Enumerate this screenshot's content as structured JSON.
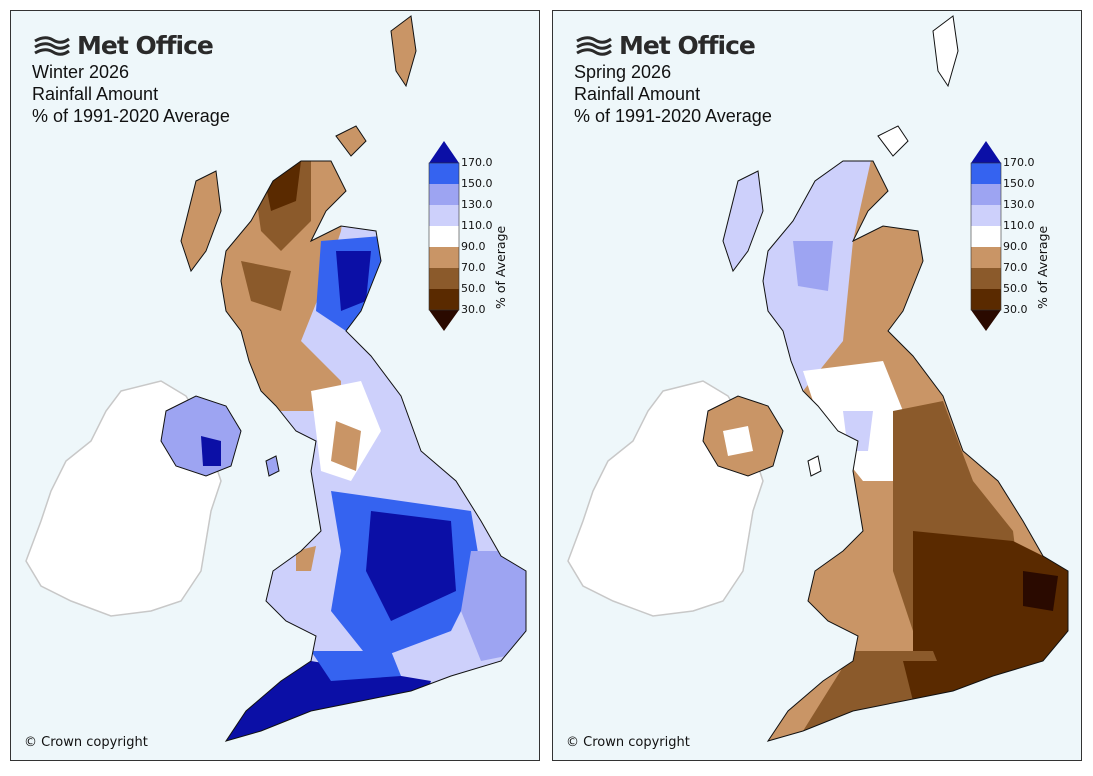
{
  "brand": {
    "name": "Met Office",
    "logo_icon": "met-office-wave-logo-icon"
  },
  "legend": {
    "unit_label": "% of Average",
    "ticks": [
      "170.0",
      "150.0",
      "130.0",
      "110.0",
      "90.0",
      "70.0",
      "50.0",
      "30.0"
    ],
    "colors": {
      "above_170": "#0b0fa6",
      "150_170": "#3563f0",
      "130_150": "#9da4f2",
      "110_130": "#cdd0fb",
      "90_110": "#ffffff",
      "70_90": "#c99566",
      "50_70": "#8b5a2b",
      "30_50": "#5a2a00",
      "below_30": "#2a0a00"
    }
  },
  "panels": [
    {
      "season": "Winter 2026",
      "variable": "Rainfall Amount",
      "baseline": "% of 1991-2020 Average",
      "copyright": "© Crown copyright",
      "pattern": "wet"
    },
    {
      "season": "Spring 2026",
      "variable": "Rainfall Amount",
      "baseline": "% of 1991-2020 Average",
      "copyright": "© Crown copyright",
      "pattern": "dry"
    }
  ]
}
